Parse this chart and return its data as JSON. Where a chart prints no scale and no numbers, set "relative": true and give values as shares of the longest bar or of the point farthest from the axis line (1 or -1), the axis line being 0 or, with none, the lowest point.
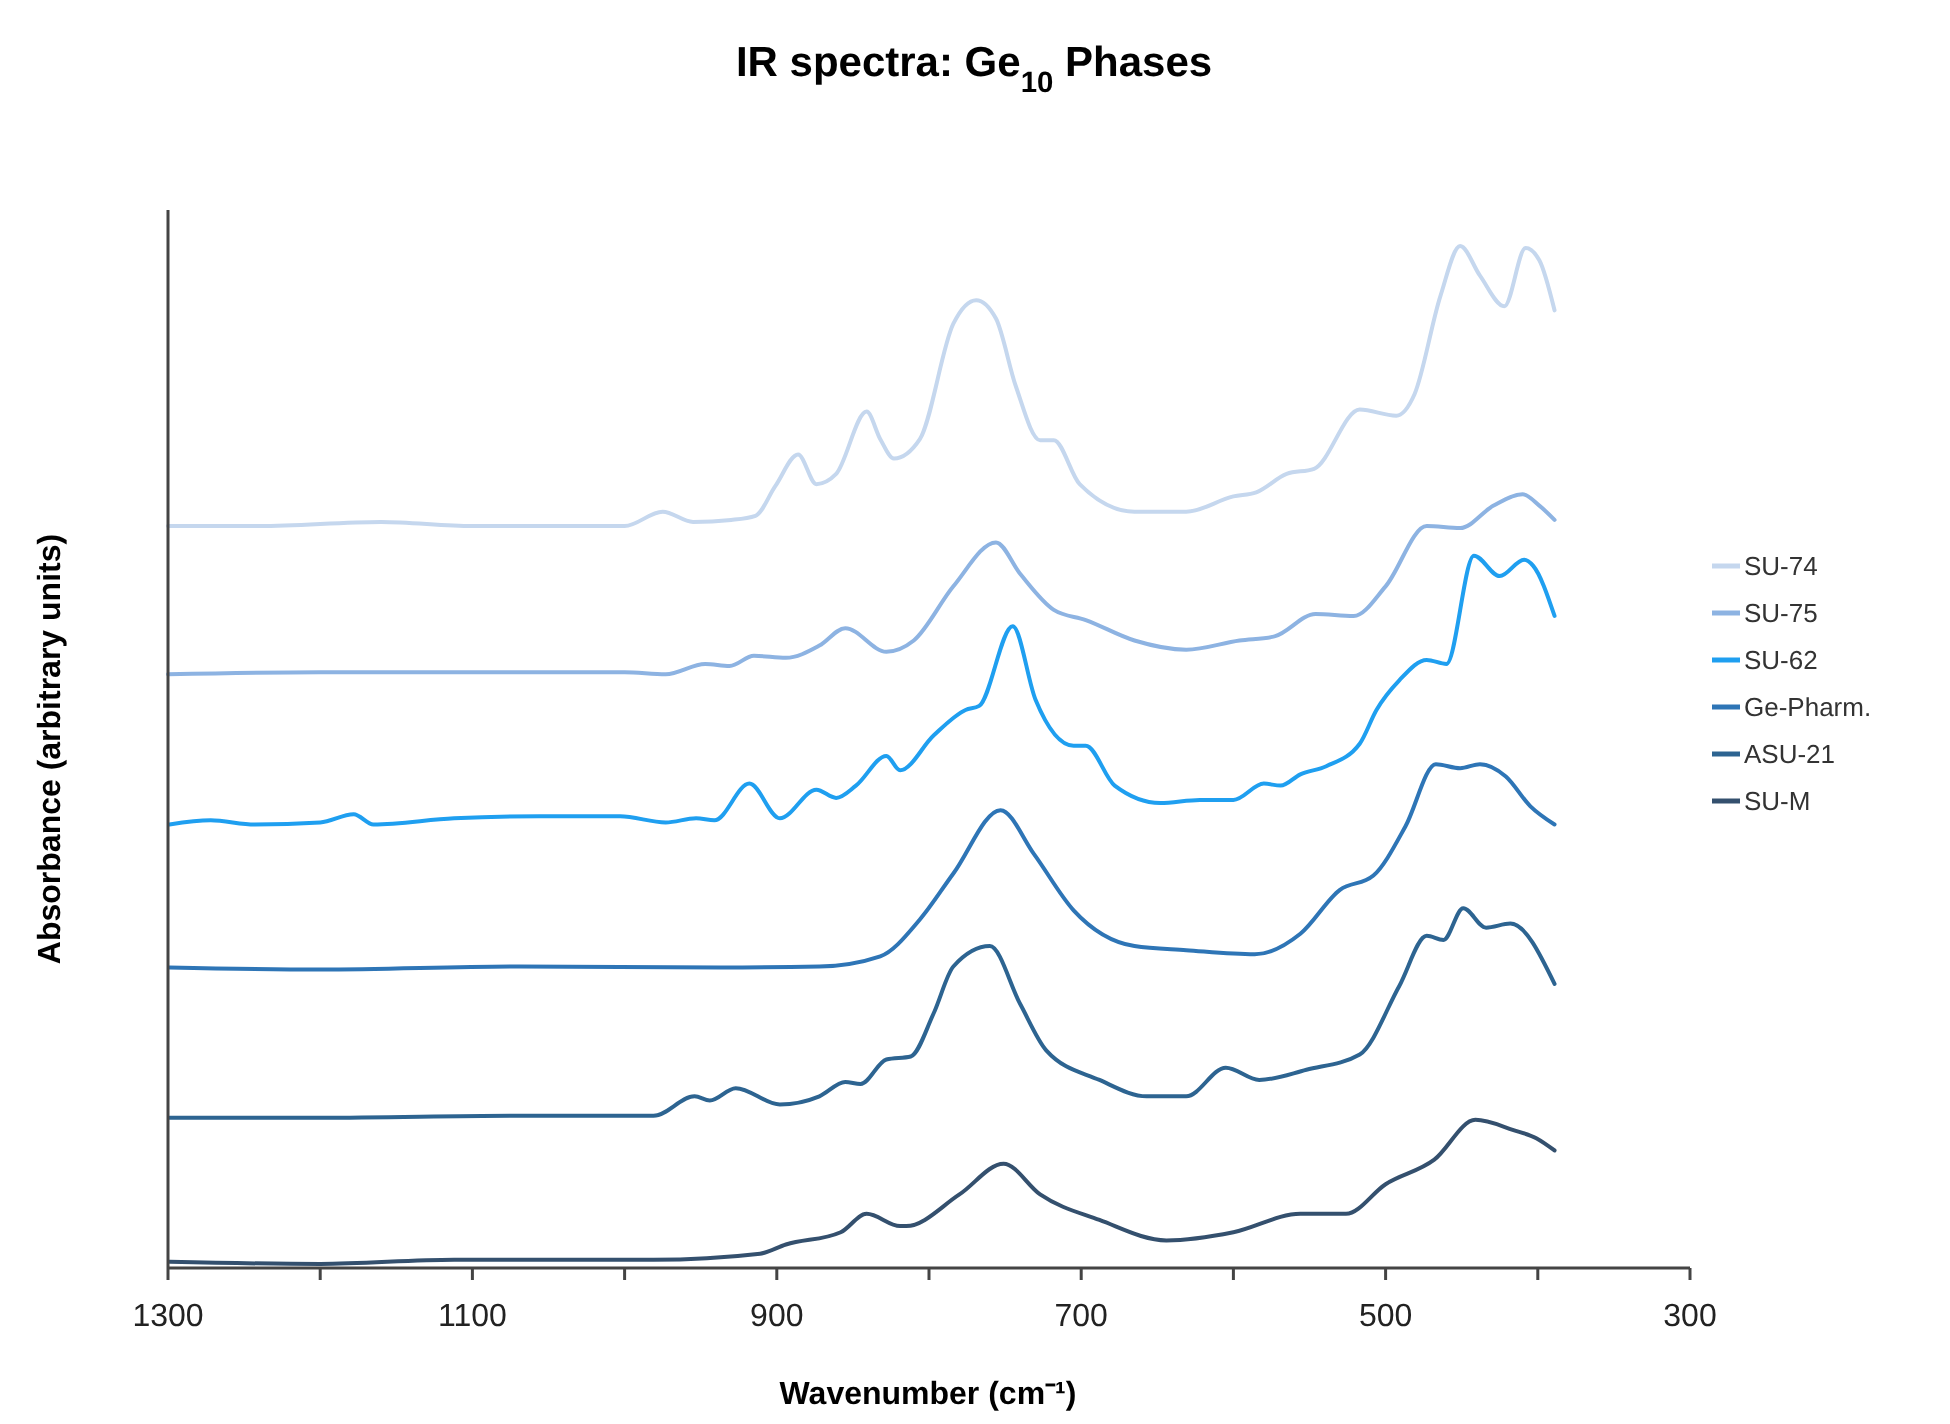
{
  "chart_data": {
    "type": "line",
    "title": "IR spectra: Ge$_{10}$ Phases",
    "xlabel": "Wavenumber (cm⁻¹)",
    "ylabel": "Absorbance (arbitrary units)",
    "relative": true,
    "xlim": [
      1300,
      300
    ],
    "xticks": [
      1300,
      {
        "value": 1200,
        "label": null
      },
      1100,
      {
        "value": 1000,
        "label": null
      },
      900,
      {
        "value": 800,
        "label": null
      },
      700,
      {
        "value": 600,
        "label": null
      },
      500,
      {
        "value": 400,
        "label": null
      },
      300
    ],
    "legend": "right",
    "grid": false,
    "marker": "none",
    "line_style": "solid",
    "series": [
      {
        "name": "SU-74",
        "color": "#c5d7ee",
        "x": [
          1300,
          1240,
          1160,
          1100,
          1040,
          1000,
          975,
          955,
          930,
          914,
          901,
          886,
          874,
          861,
          841,
          832,
          823,
          806,
          784,
          769,
          756,
          743,
          727,
          718,
          701,
          665,
          631,
          600,
          585,
          565,
          547,
          517,
          493,
          481,
          464,
          451,
          438,
          422,
          408,
          399,
          389
        ],
        "values": [
          0.726,
          0.726,
          0.73,
          0.726,
          0.726,
          0.726,
          0.74,
          0.73,
          0.732,
          0.736,
          0.765,
          0.796,
          0.767,
          0.777,
          0.838,
          0.811,
          0.792,
          0.811,
          0.924,
          0.947,
          0.929,
          0.863,
          0.81,
          0.81,
          0.767,
          0.74,
          0.74,
          0.755,
          0.759,
          0.777,
          0.782,
          0.84,
          0.834,
          0.855,
          0.951,
          1.0,
          0.971,
          0.941,
          0.998,
          0.986,
          0.937
        ]
      },
      {
        "name": "SU-75",
        "color": "#8db3e2",
        "x": [
          1300,
          1200,
          1100,
          1000,
          973,
          947,
          931,
          915,
          894,
          872,
          855,
          828,
          810,
          784,
          756,
          740,
          718,
          697,
          665,
          631,
          596,
          573,
          546,
          521,
          500,
          473,
          451,
          429,
          410,
          399,
          389
        ],
        "values": [
          0.581,
          0.583,
          0.583,
          0.583,
          0.581,
          0.591,
          0.589,
          0.599,
          0.597,
          0.609,
          0.626,
          0.603,
          0.614,
          0.667,
          0.71,
          0.679,
          0.644,
          0.634,
          0.614,
          0.605,
          0.614,
          0.618,
          0.64,
          0.638,
          0.667,
          0.726,
          0.724,
          0.746,
          0.757,
          0.746,
          0.732
        ]
      },
      {
        "name": "SU-62",
        "color": "#1f9ff0",
        "x": [
          1299,
          1272,
          1243,
          1200,
          1178,
          1165,
          1112,
          1056,
          1003,
          973,
          953,
          941,
          918,
          898,
          874,
          861,
          848,
          828,
          819,
          797,
          776,
          767,
          745,
          730,
          705,
          697,
          678,
          648,
          622,
          600,
          580,
          569,
          556,
          539,
          517,
          506,
          491,
          473,
          460,
          442,
          425,
          409,
          403,
          389
        ],
        "values": [
          0.434,
          0.438,
          0.434,
          0.436,
          0.444,
          0.434,
          0.44,
          0.442,
          0.442,
          0.436,
          0.44,
          0.438,
          0.474,
          0.44,
          0.468,
          0.46,
          0.472,
          0.501,
          0.487,
          0.521,
          0.546,
          0.55,
          0.628,
          0.556,
          0.511,
          0.511,
          0.472,
          0.455,
          0.458,
          0.458,
          0.474,
          0.472,
          0.483,
          0.491,
          0.513,
          0.546,
          0.575,
          0.595,
          0.591,
          0.697,
          0.677,
          0.693,
          0.687,
          0.638
        ]
      },
      {
        "name": "Ge-Pharm.",
        "color": "#2e75b6",
        "x": [
          1299,
          1200,
          1069,
          937,
          872,
          832,
          806,
          784,
          753,
          731,
          705,
          665,
          631,
          586,
          556,
          530,
          508,
          487,
          467,
          451,
          438,
          421,
          405,
          389
        ],
        "values": [
          0.294,
          0.292,
          0.295,
          0.294,
          0.295,
          0.305,
          0.341,
          0.386,
          0.448,
          0.405,
          0.35,
          0.315,
          0.311,
          0.307,
          0.327,
          0.37,
          0.384,
          0.432,
          0.493,
          0.489,
          0.493,
          0.481,
          0.452,
          0.434
        ]
      },
      {
        "name": "ASU-21",
        "color": "#2d6491",
        "x": [
          1299,
          1200,
          1069,
          981,
          954,
          944,
          927,
          898,
          872,
          855,
          845,
          828,
          812,
          797,
          784,
          760,
          740,
          723,
          688,
          657,
          631,
          605,
          583,
          552,
          517,
          491,
          473,
          462,
          449,
          434,
          418,
          389
        ],
        "values": [
          0.147,
          0.147,
          0.149,
          0.149,
          0.168,
          0.164,
          0.176,
          0.16,
          0.168,
          0.182,
          0.18,
          0.204,
          0.207,
          0.249,
          0.295,
          0.315,
          0.258,
          0.213,
          0.184,
          0.168,
          0.168,
          0.196,
          0.184,
          0.194,
          0.209,
          0.276,
          0.325,
          0.321,
          0.352,
          0.333,
          0.337,
          0.278
        ]
      },
      {
        "name": "SU-M",
        "color": "#34506e",
        "x": [
          1299,
          1200,
          1112,
          981,
          911,
          894,
          858,
          841,
          819,
          815,
          780,
          751,
          727,
          688,
          644,
          600,
          556,
          526,
          500,
          468,
          441,
          416,
          401,
          389
        ],
        "values": [
          0.006,
          0.004,
          0.008,
          0.008,
          0.014,
          0.023,
          0.035,
          0.053,
          0.041,
          0.041,
          0.072,
          0.102,
          0.072,
          0.047,
          0.027,
          0.035,
          0.053,
          0.053,
          0.082,
          0.106,
          0.145,
          0.135,
          0.127,
          0.115
        ]
      }
    ]
  }
}
